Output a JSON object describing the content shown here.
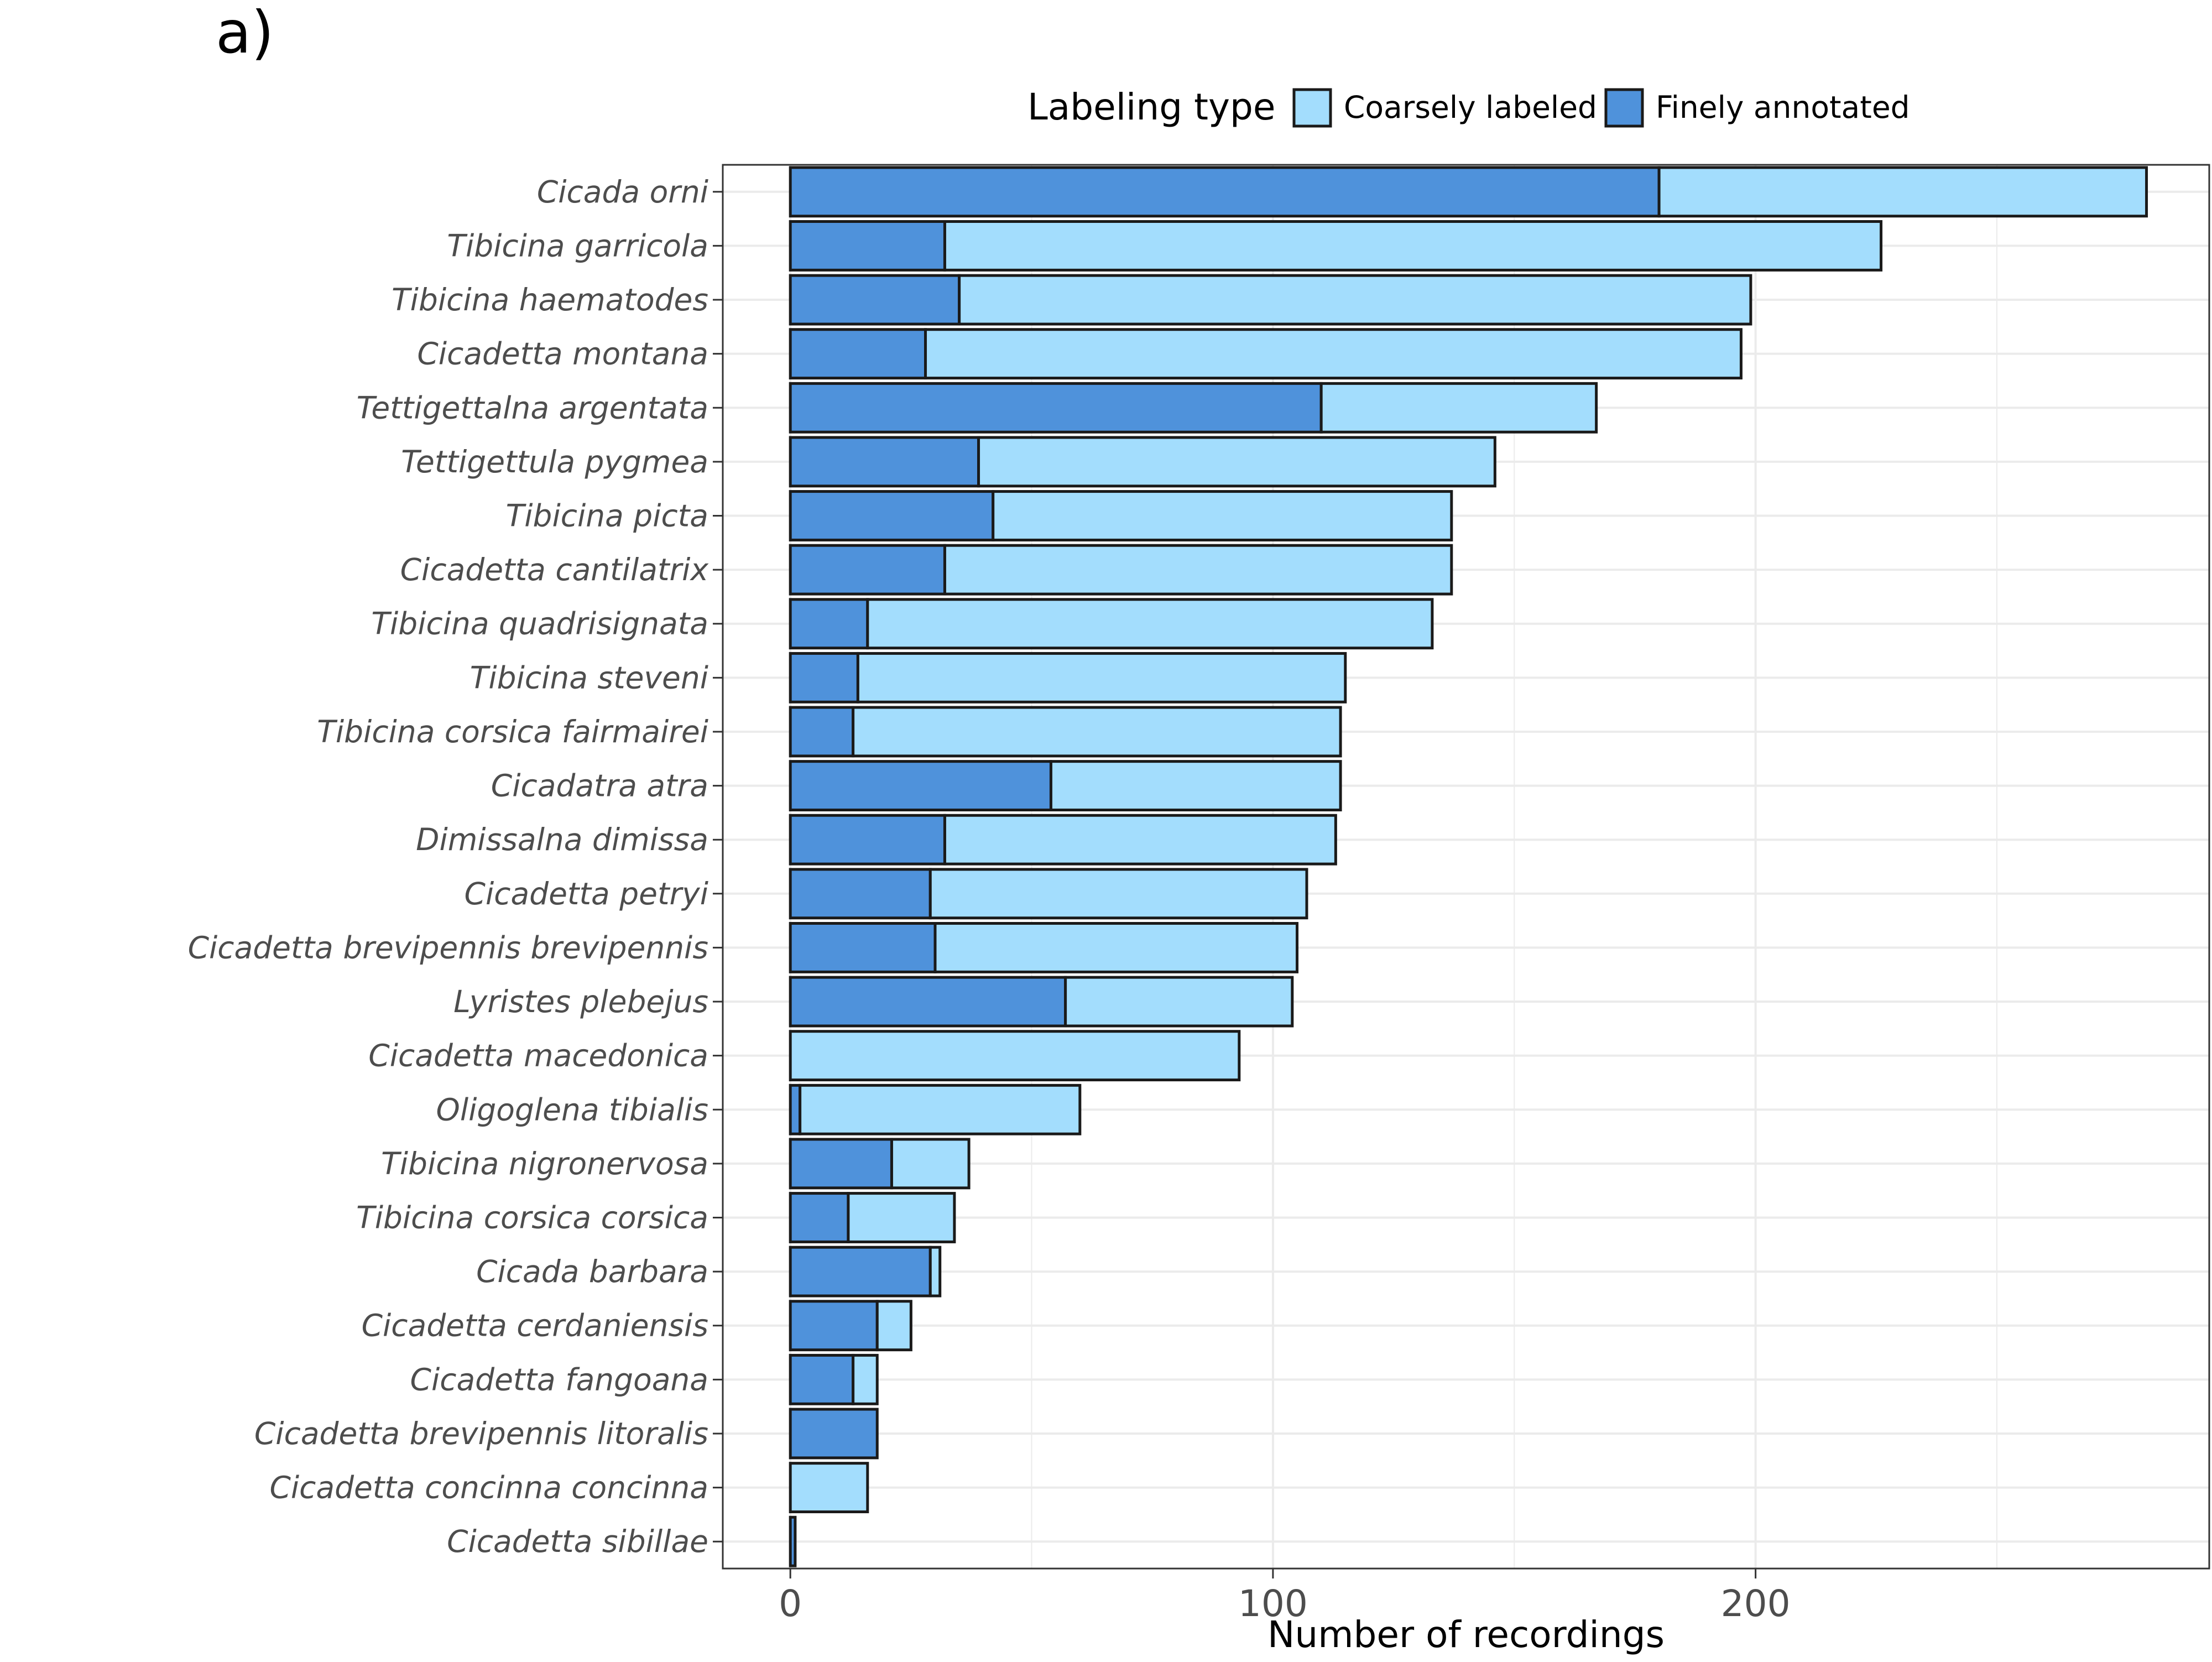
{
  "panel_tag": "a)",
  "colors": {
    "coarse": "#a3ddfd",
    "fine": "#4f92db",
    "bar_stroke": "#1a1a1a",
    "grid": "#ebebeb",
    "panel_border": "#333333",
    "text_muted": "#4d4d4d"
  },
  "chart_data": {
    "type": "bar",
    "orientation": "horizontal",
    "stacked": true,
    "xlabel": "Number of recordings",
    "ylabel": "",
    "xlim": [
      -14,
      294
    ],
    "xticks": [
      0,
      100,
      200
    ],
    "grid": true,
    "legend": {
      "title": "Labeling type",
      "position": "top",
      "entries": [
        "Coarsely labeled",
        "Finely annotated"
      ]
    },
    "categories": [
      "Cicada orni",
      "Tibicina garricola",
      "Tibicina haematodes",
      "Cicadetta montana",
      "Tettigettalna argentata",
      "Tettigettula pygmea",
      "Tibicina picta",
      "Cicadetta cantilatrix",
      "Tibicina quadrisignata",
      "Tibicina steveni",
      "Tibicina corsica fairmairei",
      "Cicadatra atra",
      "Dimissalna dimissa",
      "Cicadetta petryi",
      "Cicadetta brevipennis brevipennis",
      "Lyristes plebejus",
      "Cicadetta macedonica",
      "Oligoglena tibialis",
      "Tibicina nigronervosa",
      "Tibicina corsica corsica",
      "Cicada barbara",
      "Cicadetta cerdaniensis",
      "Cicadetta fangoana",
      "Cicadetta brevipennis litoralis",
      "Cicadetta concinna concinna",
      "Cicadetta sibillae"
    ],
    "series": [
      {
        "name": "Finely annotated",
        "values": [
          180,
          32,
          35,
          28,
          110,
          39,
          42,
          32,
          16,
          14,
          13,
          54,
          32,
          29,
          30,
          57,
          0,
          2,
          21,
          12,
          29,
          18,
          13,
          18,
          0,
          1
        ]
      },
      {
        "name": "Coarsely labeled",
        "values": [
          101,
          194,
          164,
          169,
          57,
          107,
          95,
          105,
          117,
          101,
          101,
          60,
          81,
          78,
          75,
          47,
          93,
          58,
          16,
          22,
          2,
          7,
          5,
          0,
          16,
          0
        ]
      }
    ]
  }
}
